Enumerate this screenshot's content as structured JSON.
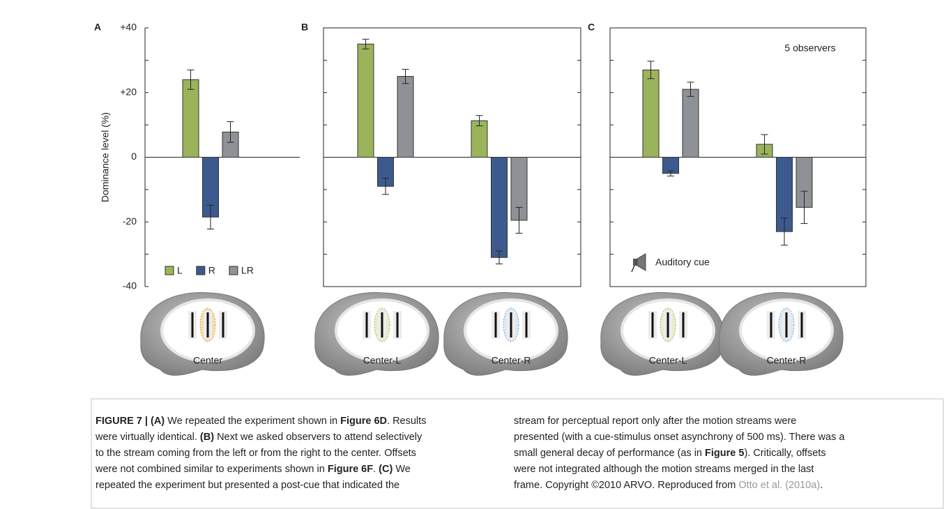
{
  "chart_data": [
    {
      "type": "bar",
      "panel": "A",
      "y_label": "Dominance level (%)",
      "categories": [
        "Center"
      ],
      "series": [
        {
          "name": "L",
          "color": "#9bb35b",
          "values": [
            24
          ],
          "errors": [
            3
          ]
        },
        {
          "name": "R",
          "color": "#3d5a8e",
          "values": [
            -18.5
          ],
          "errors": [
            3.7
          ]
        },
        {
          "name": "LR",
          "color": "#8e9196",
          "values": [
            7.8
          ],
          "errors": [
            3.2
          ]
        }
      ],
      "ylim": [
        -40,
        40
      ],
      "yticks": [
        {
          "value": 40,
          "label": "+40"
        },
        {
          "value": 20,
          "label": "+20"
        },
        0,
        -20,
        -40
      ],
      "minor_yticks": [
        30,
        10,
        -10,
        -30
      ],
      "frame": false,
      "legend": "bottom-left"
    },
    {
      "type": "bar",
      "panel": "B",
      "categories": [
        "Center-L",
        "Center-R"
      ],
      "series": [
        {
          "color": "#9bb35b",
          "values": [
            35,
            11.3
          ],
          "errors": [
            1.5,
            1.6
          ]
        },
        {
          "color": "#3d5a8e",
          "values": [
            -9,
            -31
          ],
          "errors": [
            2.5,
            2
          ]
        },
        {
          "color": "#8e9196",
          "values": [
            25,
            -19.5
          ],
          "errors": [
            2.2,
            4
          ]
        }
      ],
      "ylim": [
        -40,
        40
      ],
      "minor_yticks": [
        30,
        20,
        10,
        -10,
        -20,
        -30
      ],
      "frame": true
    },
    {
      "type": "bar",
      "panel": "C",
      "categories": [
        "Center-L",
        "Center-R"
      ],
      "series": [
        {
          "color": "#9bb35b",
          "values": [
            27,
            4
          ],
          "errors": [
            2.7,
            3
          ]
        },
        {
          "color": "#3d5a8e",
          "values": [
            -5,
            -23
          ],
          "errors": [
            0.8,
            4.2
          ]
        },
        {
          "color": "#8e9196",
          "values": [
            21,
            -15.5
          ],
          "errors": [
            2.2,
            5
          ]
        }
      ],
      "ylim": [
        -40,
        40
      ],
      "minor_yticks": [
        30,
        20,
        10,
        -10,
        -20,
        -30
      ],
      "frame": true,
      "annotations": [
        "5 observers",
        "Auditory cue"
      ]
    }
  ],
  "caption": {
    "left": [
      [
        {
          "text": "FIGURE 7 | (A)",
          "bold": true
        },
        {
          "text": " We repeated the experiment shown in "
        },
        {
          "text": "Figure 6D",
          "bold": true
        },
        {
          "text": ". Results"
        }
      ],
      [
        {
          "text": "were virtually identical. "
        },
        {
          "text": "(B)",
          "bold": true
        },
        {
          "text": " Next we asked observers to attend selectively"
        }
      ],
      [
        {
          "text": "to the stream coming from the left or from the right to the center. Offsets"
        }
      ],
      [
        {
          "text": "were not combined similar to experiments shown in "
        },
        {
          "text": "Figure 6F",
          "bold": true
        },
        {
          "text": ". "
        },
        {
          "text": "(C)",
          "bold": true
        },
        {
          "text": " We"
        }
      ],
      [
        {
          "text": "repeated the experiment but presented a post-cue that indicated the"
        }
      ]
    ],
    "right": [
      [
        {
          "text": "stream for perceptual report only after the motion streams were"
        }
      ],
      [
        {
          "text": "presented (with a cue-stimulus onset asynchrony of 500 ms). There was a"
        }
      ],
      [
        {
          "text": "small general decay of performance (as in "
        },
        {
          "text": "Figure 5",
          "bold": true
        },
        {
          "text": "). Critically, offsets"
        }
      ],
      [
        {
          "text": "were not integrated although the motion streams merged in the last"
        }
      ],
      [
        {
          "text": "frame. Copyright ©2010 ARVO. Reproduced from "
        },
        {
          "text": "Otto et al. (2010a)",
          "link": true
        },
        {
          "text": "."
        }
      ]
    ]
  }
}
